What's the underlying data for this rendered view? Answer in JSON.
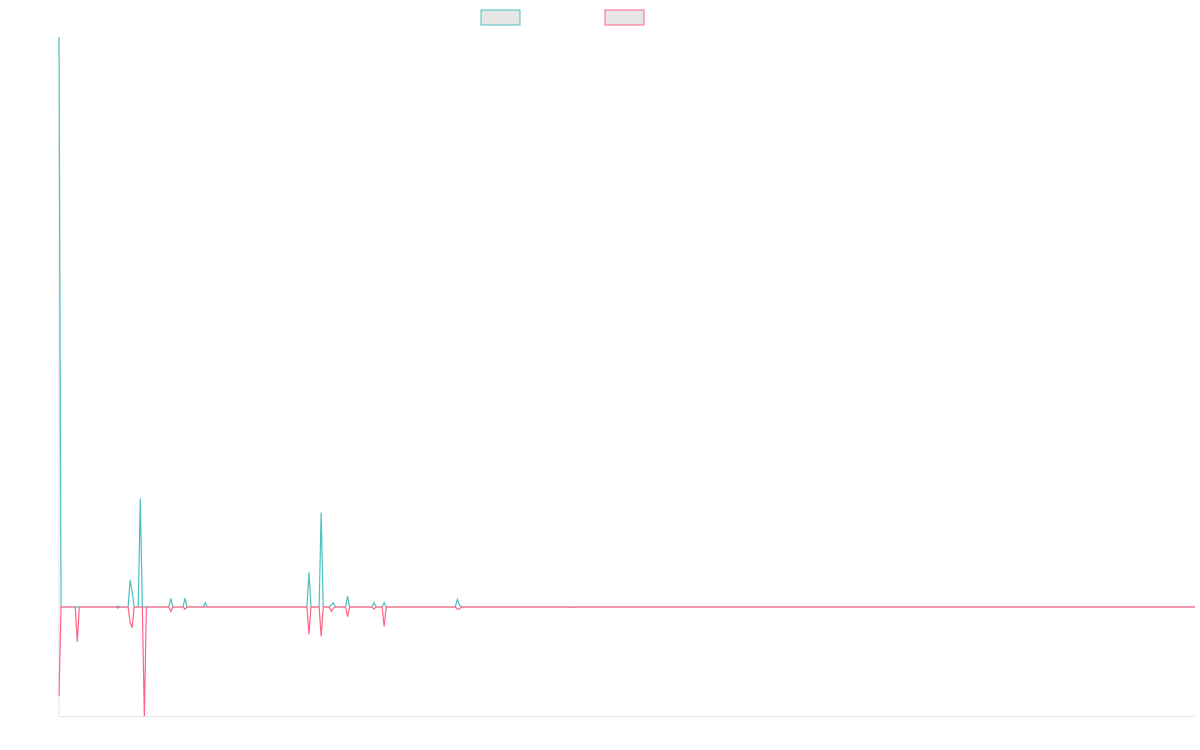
{
  "chart_data": {
    "type": "line",
    "title": "",
    "xlabel": "",
    "ylabel": "",
    "grid": false,
    "legend_position": "top-center",
    "n_points": 560,
    "y_range": [
      -1,
      5.25
    ],
    "colors": {
      "series_1": "#4bc0c0",
      "series_2": "#ff6384",
      "legend_fill": "#e6e6e6",
      "axis": "#e4e4e4"
    },
    "series": [
      {
        "legend_label": "",
        "color_key": "series_1",
        "points": [
          [
            0,
            5.25
          ],
          [
            1,
            0
          ],
          [
            28,
            0
          ],
          [
            29,
            0.01
          ],
          [
            30,
            0
          ],
          [
            34,
            0
          ],
          [
            35,
            0.25
          ],
          [
            36,
            0.14
          ],
          [
            37,
            0
          ],
          [
            39,
            0
          ],
          [
            40,
            1.0
          ],
          [
            41,
            0
          ],
          [
            54,
            0
          ],
          [
            55,
            0.08
          ],
          [
            56,
            0
          ],
          [
            61,
            0
          ],
          [
            62,
            0.08
          ],
          [
            63,
            0
          ],
          [
            71,
            0
          ],
          [
            72,
            0.04
          ],
          [
            73,
            0
          ],
          [
            122,
            0
          ],
          [
            123,
            0.32
          ],
          [
            124,
            0
          ],
          [
            128,
            0
          ],
          [
            129,
            0.87
          ],
          [
            130,
            0
          ],
          [
            133,
            0
          ],
          [
            134,
            0.02
          ],
          [
            135,
            0.04
          ],
          [
            136,
            0
          ],
          [
            141,
            0
          ],
          [
            142,
            0.1
          ],
          [
            143,
            0
          ],
          [
            154,
            0
          ],
          [
            155,
            0.04
          ],
          [
            156,
            0
          ],
          [
            159,
            0
          ],
          [
            160,
            0.04
          ],
          [
            161,
            0
          ],
          [
            195,
            0
          ],
          [
            196,
            0.07
          ],
          [
            197,
            0.02
          ],
          [
            198,
            0
          ],
          [
            559,
            0
          ]
        ]
      },
      {
        "legend_label": "",
        "color_key": "series_2",
        "points": [
          [
            0,
            -0.82
          ],
          [
            1,
            0
          ],
          [
            8,
            0
          ],
          [
            9,
            -0.32
          ],
          [
            10,
            0
          ],
          [
            28,
            0
          ],
          [
            29,
            -0.01
          ],
          [
            30,
            0
          ],
          [
            34,
            0
          ],
          [
            35,
            -0.14
          ],
          [
            36,
            -0.19
          ],
          [
            37,
            0
          ],
          [
            41,
            0
          ],
          [
            42,
            -1.0
          ],
          [
            43,
            0
          ],
          [
            54,
            0
          ],
          [
            55,
            -0.04
          ],
          [
            56,
            0
          ],
          [
            61,
            0
          ],
          [
            62,
            -0.02
          ],
          [
            63,
            0
          ],
          [
            122,
            0
          ],
          [
            123,
            -0.25
          ],
          [
            124,
            0
          ],
          [
            128,
            0
          ],
          [
            129,
            -0.27
          ],
          [
            130,
            0
          ],
          [
            133,
            0
          ],
          [
            134,
            -0.04
          ],
          [
            135,
            -0.01
          ],
          [
            136,
            0
          ],
          [
            141,
            0
          ],
          [
            142,
            -0.09
          ],
          [
            143,
            0
          ],
          [
            154,
            0
          ],
          [
            155,
            -0.02
          ],
          [
            156,
            0
          ],
          [
            159,
            0
          ],
          [
            160,
            -0.18
          ],
          [
            161,
            0
          ],
          [
            195,
            0
          ],
          [
            196,
            -0.02
          ],
          [
            197,
            -0.02
          ],
          [
            198,
            0
          ],
          [
            252,
            0
          ],
          [
            253,
            -0.005
          ],
          [
            254,
            0
          ],
          [
            559,
            0
          ]
        ]
      }
    ]
  }
}
